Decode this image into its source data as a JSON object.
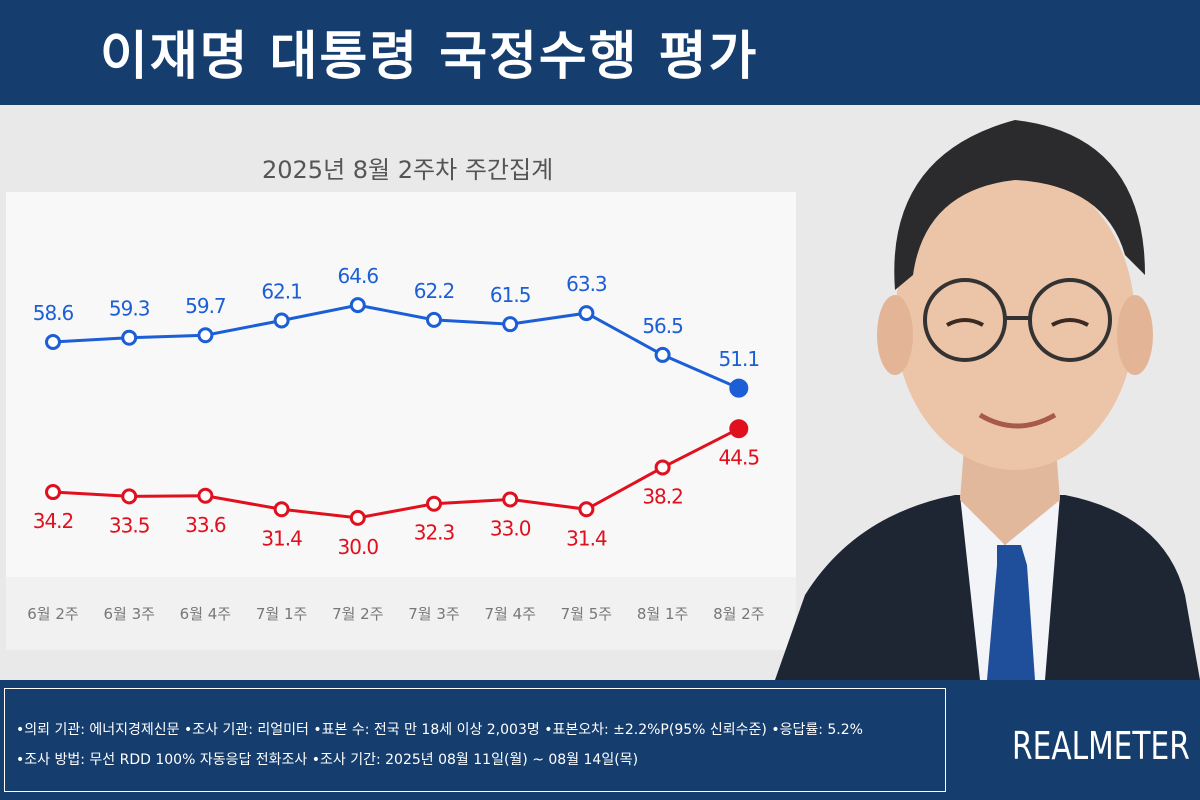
{
  "header": {
    "title": "이재명 대통령 국정수행 평가"
  },
  "subtitle": "2025년 8월 2주차 주간집계",
  "chart_data": {
    "type": "line",
    "title": "이재명 대통령 국정수행 평가",
    "subtitle": "2025년 8월 2주차 주간집계",
    "categories": [
      "6월 2주",
      "6월 3주",
      "6월 4주",
      "7월 1주",
      "7월 2주",
      "7월 3주",
      "7월 4주",
      "7월 5주",
      "8월 1주",
      "8월 2주"
    ],
    "series": [
      {
        "values": [
          58.6,
          59.3,
          59.7,
          62.1,
          64.6,
          62.2,
          61.5,
          63.3,
          56.5,
          51.1
        ],
        "color": "#1c5ed6"
      },
      {
        "values": [
          34.2,
          33.5,
          33.6,
          31.4,
          30.0,
          32.3,
          33.0,
          31.4,
          38.2,
          44.5
        ],
        "color": "#e0101e"
      }
    ],
    "labels_above": [
      true,
      false
    ],
    "grid": false
  },
  "footer": {
    "line1": "•의뢰 기관: 에너지경제신문 •조사 기관: 리얼미터 •표본 수: 전국 만 18세 이상 2,003명 •표본오차: ±2.2%P(95% 신뢰수준) •응답률: 5.2%",
    "line2": "•조사 방법: 무선 RDD 100% 자동응답 전화조사 •조사 기간: 2025년 08월 11일(월) ~ 08월 14일(목)"
  },
  "brand": "REALMETER",
  "colors": {
    "header_bg": "#153d6e",
    "approve": "#1c5ed6",
    "disapprove": "#e0101e"
  }
}
